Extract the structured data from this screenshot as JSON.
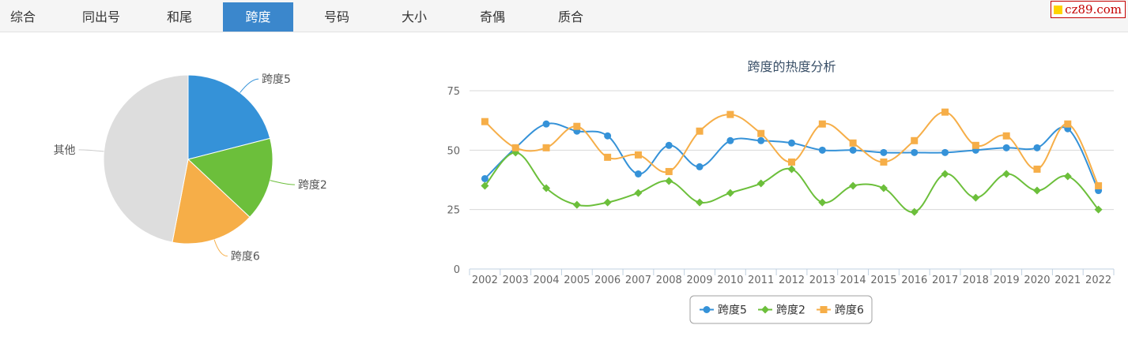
{
  "tabs": [
    {
      "label": "综合"
    },
    {
      "label": "同出号"
    },
    {
      "label": "和尾"
    },
    {
      "label": "跨度",
      "active": true
    },
    {
      "label": "号码"
    },
    {
      "label": "大小"
    },
    {
      "label": "奇偶"
    },
    {
      "label": "质合"
    }
  ],
  "brand": {
    "text": "cz89.com",
    "color": "#c40000",
    "square_color": "#ffd400"
  },
  "colors": {
    "blue": "#3592d8",
    "green": "#6cbf3b",
    "orange": "#f6ae48",
    "gray": "#dddddd",
    "tab_active": "#3b87cc"
  },
  "chart_data": [
    {
      "type": "pie",
      "title": "",
      "slices": [
        {
          "label": "跨度5",
          "value": 21,
          "color": "#3592d8"
        },
        {
          "label": "跨度2",
          "value": 16,
          "color": "#6cbf3b"
        },
        {
          "label": "跨度6",
          "value": 16,
          "color": "#f6ae48"
        },
        {
          "label": "其他",
          "value": 47,
          "color": "#dddddd"
        }
      ]
    },
    {
      "type": "line",
      "title": "跨度的热度分析",
      "xlabel": "",
      "ylabel": "",
      "ylim": [
        0,
        75
      ],
      "yticks": [
        0,
        25,
        50,
        75
      ],
      "grid": true,
      "legend": "bottom-center",
      "categories": [
        "2002",
        "2003",
        "2004",
        "2005",
        "2006",
        "2007",
        "2008",
        "2009",
        "2010",
        "2011",
        "2012",
        "2013",
        "2014",
        "2015",
        "2016",
        "2017",
        "2018",
        "2019",
        "2020",
        "2021",
        "2022"
      ],
      "series": [
        {
          "name": "跨度5",
          "marker": "circle",
          "color": "#3592d8",
          "values": [
            38,
            51,
            61,
            58,
            56,
            40,
            52,
            43,
            54,
            54,
            53,
            50,
            50,
            49,
            49,
            49,
            50,
            51,
            51,
            59,
            33
          ]
        },
        {
          "name": "跨度2",
          "marker": "diamond",
          "color": "#6cbf3b",
          "values": [
            35,
            49,
            34,
            27,
            28,
            32,
            37,
            28,
            32,
            36,
            42,
            28,
            35,
            34,
            24,
            40,
            30,
            40,
            33,
            39,
            25
          ]
        },
        {
          "name": "跨度6",
          "marker": "square",
          "color": "#f6ae48",
          "values": [
            62,
            51,
            51,
            60,
            47,
            48,
            41,
            58,
            65,
            57,
            45,
            61,
            53,
            45,
            54,
            66,
            52,
            56,
            42,
            61,
            35
          ]
        }
      ]
    }
  ]
}
